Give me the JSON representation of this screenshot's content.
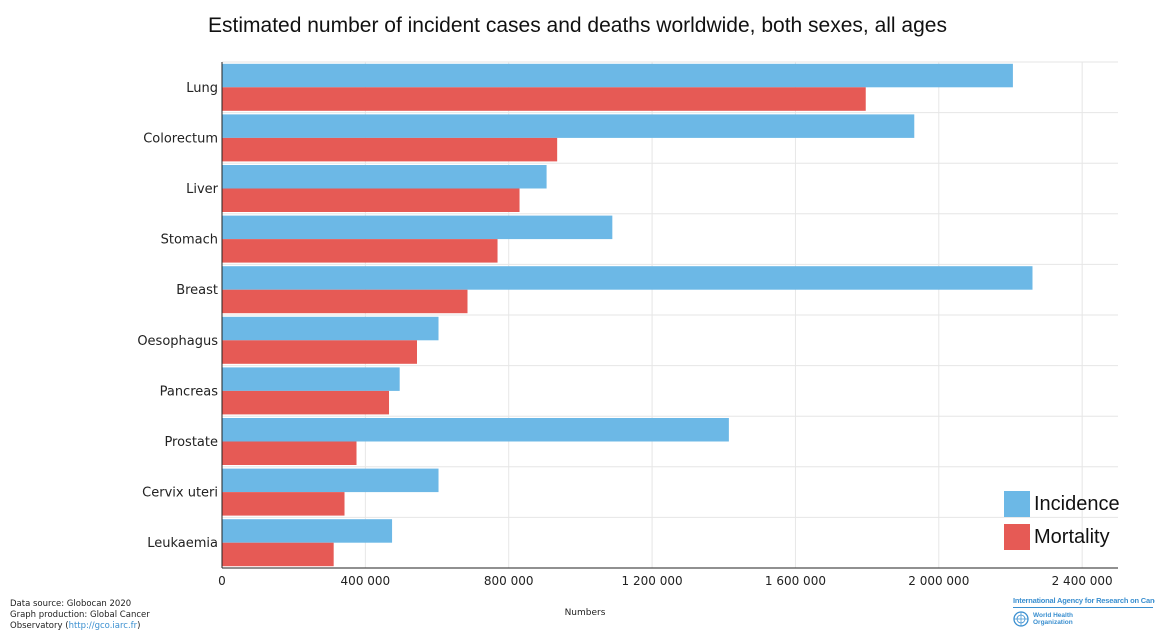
{
  "chart_data": {
    "type": "bar",
    "orientation": "horizontal",
    "title": "Estimated number of incident cases and deaths worldwide, both sexes, all ages",
    "xlabel": "Numbers",
    "ylabel": "",
    "xlim": [
      0,
      2500000
    ],
    "xticks": [
      0,
      400000,
      800000,
      1200000,
      1600000,
      2000000,
      2400000
    ],
    "xtick_labels": [
      "0",
      "400 000",
      "800 000",
      "1 200 000",
      "1 600 000",
      "2 000 000",
      "2 400 000"
    ],
    "grid": true,
    "legend_position": "bottom-right",
    "categories": [
      "Lung",
      "Colorectum",
      "Liver",
      "Stomach",
      "Breast",
      "Oesophagus",
      "Pancreas",
      "Prostate",
      "Cervix uteri",
      "Leukaemia"
    ],
    "series": [
      {
        "name": "Incidence",
        "color": "#6cb8e6",
        "values": [
          2206771,
          1931590,
          905677,
          1089103,
          2261419,
          604100,
          495773,
          1414259,
          604127,
          474519
        ]
      },
      {
        "name": "Mortality",
        "color": "#e65a55",
        "values": [
          1796144,
          935173,
          830180,
          768793,
          684996,
          544076,
          466003,
          375304,
          341831,
          311594
        ]
      }
    ]
  },
  "footer": {
    "source_line1": "Data source: Globocan 2020",
    "source_line2": "Graph production: Global Cancer",
    "source_line3_prefix": "Observatory (",
    "source_link": "http://gco.iarc.fr",
    "source_line3_suffix": ")"
  },
  "logo": {
    "iarc_text": "International Agency for Research on Cancer",
    "who_line1": "World Health",
    "who_line2": "Organization"
  }
}
